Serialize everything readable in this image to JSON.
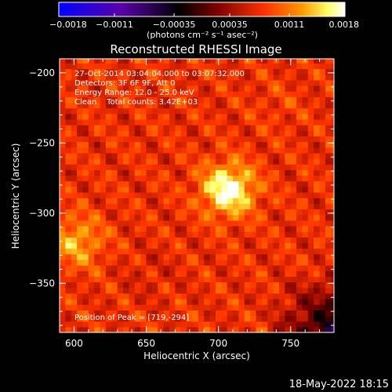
{
  "chart_data": {
    "type": "heatmap",
    "title": "Reconstructed RHESSI Image",
    "xlabel": "Heliocentric X (arcsec)",
    "ylabel": "Heliocentric Y (arcsec)",
    "xlim": [
      590,
      780
    ],
    "ylim": [
      -385,
      -190
    ],
    "xticks": [
      600,
      650,
      700,
      750
    ],
    "xtick_labels": [
      "600",
      "650",
      "700",
      "750"
    ],
    "yticks": [
      -200,
      -250,
      -300,
      -350
    ],
    "ytick_labels": [
      "−200",
      "−250",
      "−300",
      "−350"
    ],
    "colorbar": {
      "range": [
        -0.0018,
        0.0018
      ],
      "ticks": [
        -0.0018,
        -0.0011,
        -0.00035,
        0.00035,
        0.0011,
        0.0018
      ],
      "tick_labels": [
        "−0.0018",
        "−0.0011",
        "−0.00035",
        "0.00035",
        "0.0011",
        "0.0018"
      ],
      "units": "(photons cm⁻² s⁻¹ asec⁻²)",
      "colors": [
        "#0000ff",
        "#5a00a8",
        "#000000",
        "#7a0000",
        "#ff3300",
        "#ff9900",
        "#ffff66",
        "#ffffff"
      ]
    },
    "sources": [
      {
        "x": 705,
        "y": -285,
        "peak": 0.0018
      },
      {
        "x": 600,
        "y": -322,
        "peak": 0.0013
      },
      {
        "x": 740,
        "y": -225,
        "peak": 0.0008
      },
      {
        "x": 650,
        "y": -345,
        "peak": 0.0006
      }
    ],
    "annotations": [
      "27-Oct-2014 03:04:04.000 to 03:07:32.000",
      "Detectors: 3F 6F 9F, Att 0",
      "Energy Range: 12.0 - 25.0 keV",
      "Clean    Total counts: 3.42E+03"
    ],
    "peak_label": "Position of Peak = [719,-294]"
  },
  "footer_date": "18-May-2022 18:15"
}
